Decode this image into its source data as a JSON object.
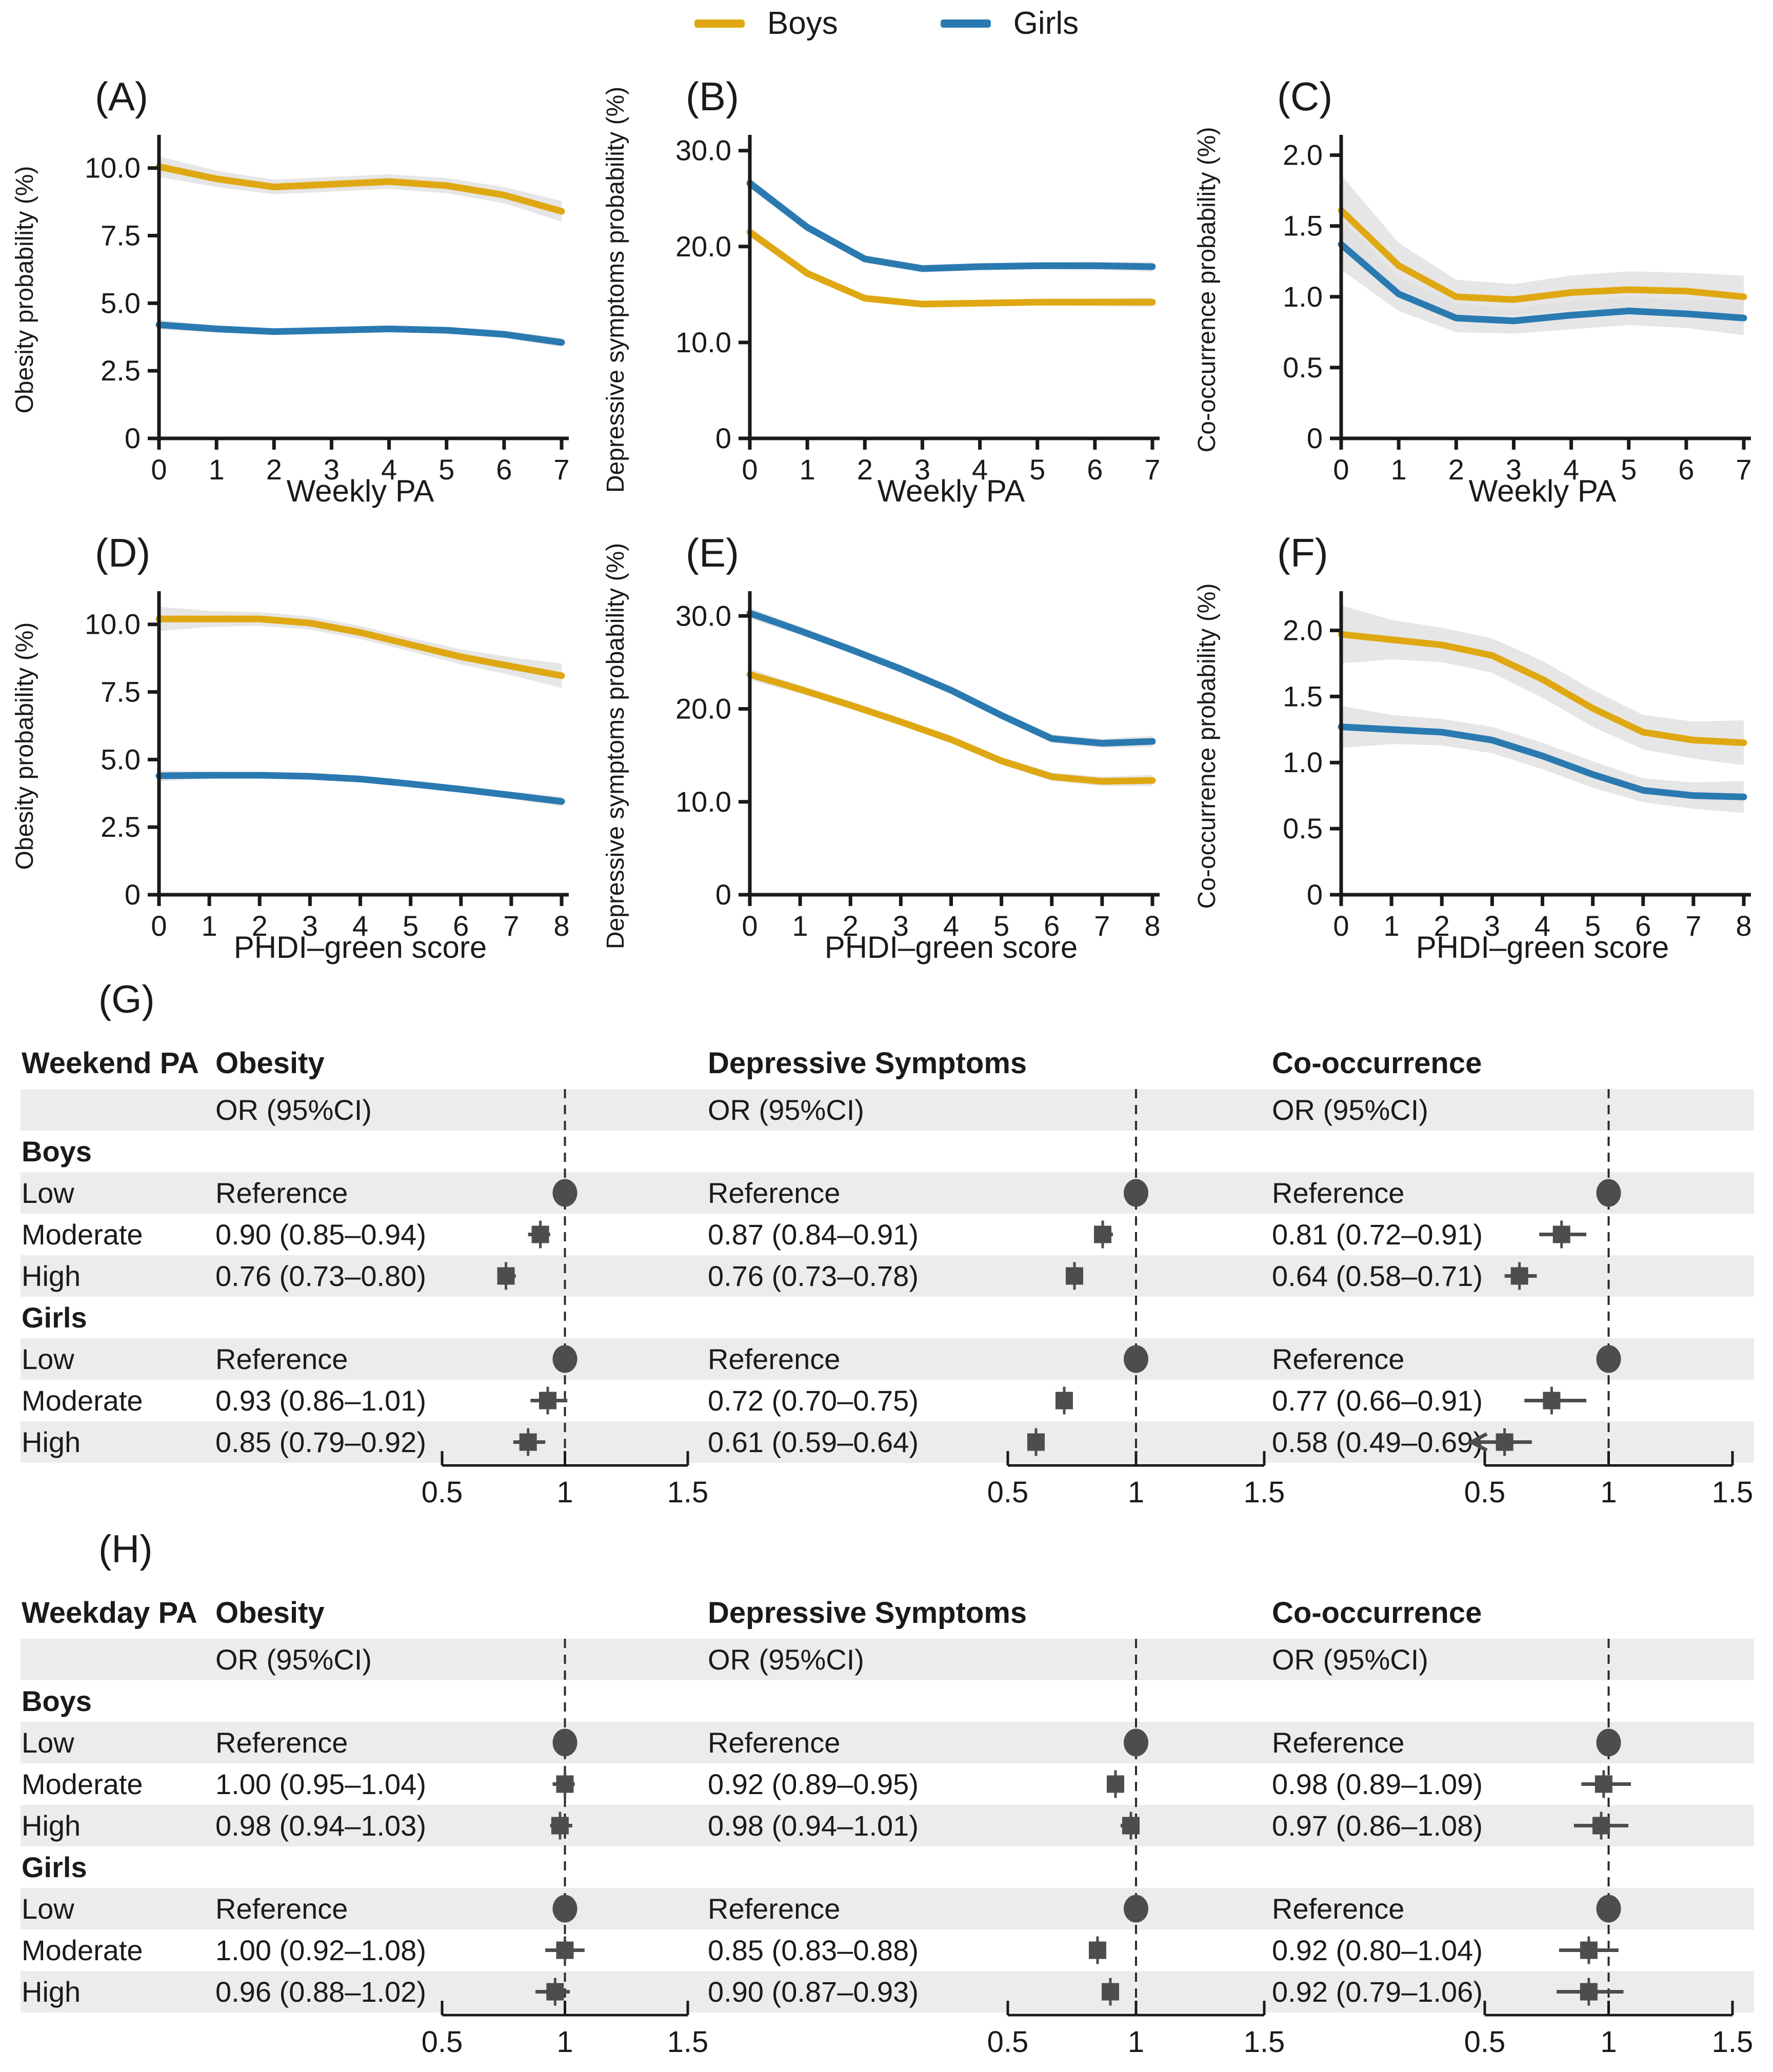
{
  "palette": {
    "boys": "#DFA812",
    "girls": "#2A7AB1",
    "band": "#E0E0E0",
    "stripe": "#ECECEC",
    "marker": "#4D4D4D",
    "axis": "#1A1A1A",
    "dashed": "#2B2B2B"
  },
  "legend": {
    "boys": "Boys",
    "girls": "Girls"
  },
  "chart_data": {
    "line_charts": [
      {
        "type": "line",
        "label": "(A)",
        "ylabel": "Obesity probability (%)",
        "xlabel": "Weekly PA",
        "x": [
          0,
          1,
          2,
          3,
          4,
          5,
          6,
          7
        ],
        "ymax": 11,
        "yticks": [
          0,
          2.5,
          5,
          7.5,
          10
        ],
        "ytick_labels": [
          "0",
          "2.5",
          "5.0",
          "7.5",
          "10.0"
        ],
        "series": [
          {
            "name": "Boys",
            "color_key": "boys",
            "values": [
              10.05,
              9.6,
              9.3,
              9.4,
              9.5,
              9.35,
              9.0,
              8.4
            ],
            "band": [
              0.38,
              0.3,
              0.27,
              0.27,
              0.27,
              0.28,
              0.3,
              0.38
            ]
          },
          {
            "name": "Girls",
            "color_key": "girls",
            "values": [
              4.2,
              4.05,
              3.95,
              4.0,
              4.05,
              4.0,
              3.85,
              3.55
            ],
            "band": [
              0.18,
              0.13,
              0.12,
              0.12,
              0.12,
              0.12,
              0.13,
              0.17
            ]
          }
        ]
      },
      {
        "type": "line",
        "label": "(B)",
        "ylabel": "Depressive symptoms probability (%)",
        "xlabel": "Weekly PA",
        "x": [
          0,
          1,
          2,
          3,
          4,
          5,
          6,
          7
        ],
        "ymax": 31,
        "yticks": [
          0,
          10,
          20,
          30
        ],
        "ytick_labels": [
          "0",
          "10.0",
          "20.0",
          "30.0"
        ],
        "series": [
          {
            "name": "Boys",
            "color_key": "boys",
            "values": [
              21.5,
              17.2,
              14.6,
              14.0,
              14.1,
              14.2,
              14.2,
              14.2
            ],
            "band": [
              0.5,
              0.4,
              0.35,
              0.35,
              0.35,
              0.35,
              0.4,
              0.5
            ]
          },
          {
            "name": "Girls",
            "color_key": "girls",
            "values": [
              26.6,
              22.0,
              18.7,
              17.7,
              17.9,
              18.0,
              18.0,
              17.9
            ],
            "band": [
              0.55,
              0.45,
              0.4,
              0.38,
              0.38,
              0.38,
              0.42,
              0.5
            ]
          }
        ]
      },
      {
        "type": "line",
        "label": "(C)",
        "ylabel": "Co-occurrence probability (%)",
        "xlabel": "Weekly PA",
        "x": [
          0,
          1,
          2,
          3,
          4,
          5,
          6,
          7
        ],
        "ymax": 2.1,
        "yticks": [
          0,
          0.5,
          1,
          1.5,
          2
        ],
        "ytick_labels": [
          "0",
          "0.5",
          "1.0",
          "1.5",
          "2.0"
        ],
        "series": [
          {
            "name": "Boys",
            "color_key": "boys",
            "values": [
              1.61,
              1.22,
              1.0,
              0.98,
              1.03,
              1.05,
              1.04,
              1.0
            ],
            "band": [
              0.25,
              0.16,
              0.12,
              0.11,
              0.12,
              0.13,
              0.13,
              0.15
            ]
          },
          {
            "name": "Girls",
            "color_key": "girls",
            "values": [
              1.37,
              1.02,
              0.85,
              0.83,
              0.87,
              0.9,
              0.88,
              0.85
            ],
            "band": [
              0.18,
              0.12,
              0.1,
              0.09,
              0.1,
              0.1,
              0.1,
              0.12
            ]
          }
        ]
      },
      {
        "type": "line",
        "label": "(D)",
        "ylabel": "Obesity probability (%)",
        "xlabel": "PHDI–green score",
        "x": [
          0,
          1,
          2,
          3,
          4,
          5,
          6,
          7,
          8
        ],
        "ymax": 11,
        "yticks": [
          0,
          2.5,
          5,
          7.5,
          10
        ],
        "ytick_labels": [
          "0",
          "2.5",
          "5.0",
          "7.5",
          "10.0"
        ],
        "series": [
          {
            "name": "Boys",
            "color_key": "boys",
            "values": [
              10.2,
              10.2,
              10.2,
              10.05,
              9.7,
              9.25,
              8.8,
              8.45,
              8.1
            ],
            "band": [
              0.45,
              0.3,
              0.25,
              0.24,
              0.24,
              0.25,
              0.28,
              0.33,
              0.45
            ]
          },
          {
            "name": "Girls",
            "color_key": "girls",
            "values": [
              4.4,
              4.42,
              4.42,
              4.38,
              4.28,
              4.1,
              3.9,
              3.68,
              3.45
            ],
            "band": [
              0.2,
              0.13,
              0.11,
              0.11,
              0.11,
              0.12,
              0.12,
              0.14,
              0.18
            ]
          }
        ]
      },
      {
        "type": "line",
        "label": "(E)",
        "ylabel": "Depressive symptoms probability (%)",
        "xlabel": "PHDI–green score",
        "x": [
          0,
          1,
          2,
          3,
          4,
          5,
          6,
          7,
          8
        ],
        "ymax": 32,
        "yticks": [
          0,
          10,
          20,
          30
        ],
        "ytick_labels": [
          "0",
          "10.0",
          "20.0",
          "30.0"
        ],
        "series": [
          {
            "name": "Boys",
            "color_key": "boys",
            "values": [
              23.7,
              22.1,
              20.4,
              18.6,
              16.7,
              14.4,
              12.7,
              12.2,
              12.3
            ],
            "band": [
              0.6,
              0.45,
              0.4,
              0.4,
              0.4,
              0.4,
              0.45,
              0.5,
              0.6
            ]
          },
          {
            "name": "Girls",
            "color_key": "girls",
            "values": [
              30.3,
              28.4,
              26.4,
              24.3,
              22.0,
              19.3,
              16.8,
              16.3,
              16.5
            ],
            "band": [
              0.6,
              0.45,
              0.4,
              0.4,
              0.4,
              0.4,
              0.45,
              0.5,
              0.6
            ]
          }
        ]
      },
      {
        "type": "line",
        "label": "(F)",
        "ylabel": "Co-occurrence probability (%)",
        "xlabel": "PHDI–green score",
        "x": [
          0,
          1,
          2,
          3,
          4,
          5,
          6,
          7,
          8
        ],
        "ymax": 2.25,
        "yticks": [
          0,
          0.5,
          1,
          1.5,
          2
        ],
        "ytick_labels": [
          "0",
          "0.5",
          "1.0",
          "1.5",
          "2.0"
        ],
        "series": [
          {
            "name": "Boys",
            "color_key": "boys",
            "values": [
              1.97,
              1.93,
              1.89,
              1.81,
              1.63,
              1.41,
              1.23,
              1.17,
              1.15
            ],
            "band": [
              0.22,
              0.15,
              0.13,
              0.13,
              0.14,
              0.14,
              0.13,
              0.14,
              0.17
            ]
          },
          {
            "name": "Girls",
            "color_key": "girls",
            "values": [
              1.27,
              1.25,
              1.23,
              1.17,
              1.05,
              0.91,
              0.79,
              0.75,
              0.74
            ],
            "band": [
              0.16,
              0.11,
              0.1,
              0.1,
              0.1,
              0.1,
              0.09,
              0.1,
              0.12
            ]
          }
        ]
      }
    ],
    "forest_plots": [
      {
        "type": "forest",
        "panel_label": "(G)",
        "row_header": "Weekend PA",
        "or_label": "OR (95%CI)",
        "outcomes": [
          "Obesity",
          "Depressive Symptoms",
          "Co-occurrence"
        ],
        "axis_tick_values": [
          0.5,
          1,
          1.5
        ],
        "axis_tick_labels": [
          "0.5",
          "1",
          "1.5"
        ],
        "groups": [
          {
            "name": "Boys",
            "rows": [
              {
                "level": "Low",
                "cells": [
                  {
                    "text": "Reference",
                    "ref": true
                  },
                  {
                    "text": "Reference",
                    "ref": true
                  },
                  {
                    "text": "Reference",
                    "ref": true
                  }
                ]
              },
              {
                "level": "Moderate",
                "cells": [
                  {
                    "text": "0.90 (0.85–0.94)",
                    "or": 0.9,
                    "lo": 0.85,
                    "hi": 0.94
                  },
                  {
                    "text": "0.87 (0.84–0.91)",
                    "or": 0.87,
                    "lo": 0.84,
                    "hi": 0.91
                  },
                  {
                    "text": "0.81 (0.72–0.91)",
                    "or": 0.81,
                    "lo": 0.72,
                    "hi": 0.91
                  }
                ]
              },
              {
                "level": "High",
                "cells": [
                  {
                    "text": "0.76 (0.73–0.80)",
                    "or": 0.76,
                    "lo": 0.73,
                    "hi": 0.8
                  },
                  {
                    "text": "0.76 (0.73–0.78)",
                    "or": 0.76,
                    "lo": 0.73,
                    "hi": 0.78
                  },
                  {
                    "text": "0.64 (0.58–0.71)",
                    "or": 0.64,
                    "lo": 0.58,
                    "hi": 0.71
                  }
                ]
              }
            ]
          },
          {
            "name": "Girls",
            "rows": [
              {
                "level": "Low",
                "cells": [
                  {
                    "text": "Reference",
                    "ref": true
                  },
                  {
                    "text": "Reference",
                    "ref": true
                  },
                  {
                    "text": "Reference",
                    "ref": true
                  }
                ]
              },
              {
                "level": "Moderate",
                "cells": [
                  {
                    "text": "0.93 (0.86–1.01)",
                    "or": 0.93,
                    "lo": 0.86,
                    "hi": 1.01
                  },
                  {
                    "text": "0.72 (0.70–0.75)",
                    "or": 0.72,
                    "lo": 0.7,
                    "hi": 0.75
                  },
                  {
                    "text": "0.77 (0.66–0.91)",
                    "or": 0.77,
                    "lo": 0.66,
                    "hi": 0.91
                  }
                ]
              },
              {
                "level": "High",
                "cells": [
                  {
                    "text": "0.85 (0.79–0.92)",
                    "or": 0.85,
                    "lo": 0.79,
                    "hi": 0.92
                  },
                  {
                    "text": "0.61 (0.59–0.64)",
                    "or": 0.61,
                    "lo": 0.59,
                    "hi": 0.64
                  },
                  {
                    "text": "0.58 (0.49–0.69)",
                    "or": 0.58,
                    "lo": 0.49,
                    "hi": 0.69,
                    "clip_left": true
                  }
                ]
              }
            ]
          }
        ]
      },
      {
        "type": "forest",
        "panel_label": "(H)",
        "row_header": "Weekday PA",
        "or_label": "OR (95%CI)",
        "outcomes": [
          "Obesity",
          "Depressive Symptoms",
          "Co-occurrence"
        ],
        "axis_tick_values": [
          0.5,
          1,
          1.5
        ],
        "axis_tick_labels": [
          "0.5",
          "1",
          "1.5"
        ],
        "groups": [
          {
            "name": "Boys",
            "rows": [
              {
                "level": "Low",
                "cells": [
                  {
                    "text": "Reference",
                    "ref": true
                  },
                  {
                    "text": "Reference",
                    "ref": true
                  },
                  {
                    "text": "Reference",
                    "ref": true
                  }
                ]
              },
              {
                "level": "Moderate",
                "cells": [
                  {
                    "text": "1.00 (0.95–1.04)",
                    "or": 1.0,
                    "lo": 0.95,
                    "hi": 1.04
                  },
                  {
                    "text": "0.92 (0.89–0.95)",
                    "or": 0.92,
                    "lo": 0.89,
                    "hi": 0.95
                  },
                  {
                    "text": "0.98 (0.89–1.09)",
                    "or": 0.98,
                    "lo": 0.89,
                    "hi": 1.09
                  }
                ]
              },
              {
                "level": "High",
                "cells": [
                  {
                    "text": "0.98 (0.94–1.03)",
                    "or": 0.98,
                    "lo": 0.94,
                    "hi": 1.03
                  },
                  {
                    "text": "0.98 (0.94–1.01)",
                    "or": 0.98,
                    "lo": 0.94,
                    "hi": 1.01
                  },
                  {
                    "text": "0.97 (0.86–1.08)",
                    "or": 0.97,
                    "lo": 0.86,
                    "hi": 1.08
                  }
                ]
              }
            ]
          },
          {
            "name": "Girls",
            "rows": [
              {
                "level": "Low",
                "cells": [
                  {
                    "text": "Reference",
                    "ref": true
                  },
                  {
                    "text": "Reference",
                    "ref": true
                  },
                  {
                    "text": "Reference",
                    "ref": true
                  }
                ]
              },
              {
                "level": "Moderate",
                "cells": [
                  {
                    "text": "1.00 (0.92–1.08)",
                    "or": 1.0,
                    "lo": 0.92,
                    "hi": 1.08
                  },
                  {
                    "text": "0.85 (0.83–0.88)",
                    "or": 0.85,
                    "lo": 0.83,
                    "hi": 0.88
                  },
                  {
                    "text": "0.92 (0.80–1.04)",
                    "or": 0.92,
                    "lo": 0.8,
                    "hi": 1.04
                  }
                ]
              },
              {
                "level": "High",
                "cells": [
                  {
                    "text": "0.96 (0.88–1.02)",
                    "or": 0.96,
                    "lo": 0.88,
                    "hi": 1.02
                  },
                  {
                    "text": "0.90 (0.87–0.93)",
                    "or": 0.9,
                    "lo": 0.87,
                    "hi": 0.93
                  },
                  {
                    "text": "0.92 (0.79–1.06)",
                    "or": 0.92,
                    "lo": 0.79,
                    "hi": 1.06
                  }
                ]
              }
            ]
          }
        ]
      }
    ]
  }
}
